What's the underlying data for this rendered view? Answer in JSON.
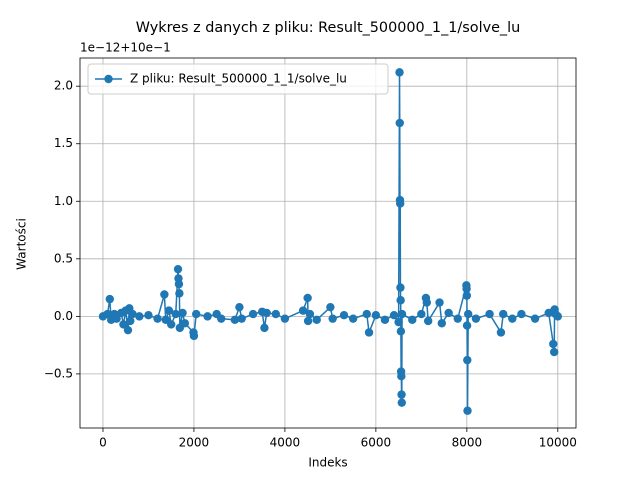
{
  "chart_data": {
    "type": "line",
    "title": "Wykres z danych z pliku: Result_500000_1_1/solve_lu",
    "offset_text": "1e−12+10e−1",
    "x_label": "Indeks",
    "y_label": "Wartości",
    "x": [
      0,
      100,
      150,
      180,
      250,
      300,
      400,
      450,
      500,
      550,
      580,
      600,
      650,
      800,
      1000,
      1200,
      1350,
      1380,
      1450,
      1500,
      1600,
      1650,
      1660,
      1670,
      1680,
      1690,
      1750,
      1800,
      1990,
      2000,
      2050,
      2300,
      2500,
      2600,
      2900,
      3000,
      3050,
      3300,
      3500,
      3550,
      3600,
      3800,
      4000,
      4400,
      4500,
      4510,
      4550,
      4700,
      5000,
      5050,
      5300,
      5500,
      5800,
      5850,
      6000,
      6200,
      6400,
      6500,
      6520,
      6525,
      6530,
      6535,
      6540,
      6545,
      6550,
      6555,
      6560,
      6565,
      6570,
      6575,
      6800,
      7000,
      7100,
      7120,
      7150,
      7400,
      7450,
      7600,
      7800,
      7990,
      7995,
      8000,
      8005,
      8010,
      8015,
      8030,
      8200,
      8500,
      8750,
      8800,
      9000,
      9200,
      9500,
      9800,
      9900,
      9920,
      9930,
      9950,
      10000
    ],
    "series": [
      {
        "name": "Z pliku: Result_500000_1_1/solve_lu",
        "color": "#1f77b4",
        "values": [
          0,
          0.02,
          0.15,
          -0.03,
          0.02,
          -0.02,
          0.03,
          -0.07,
          0.05,
          -0.12,
          0.07,
          -0.04,
          0.02,
          0,
          0.01,
          -0.02,
          0.19,
          -0.03,
          0.05,
          -0.07,
          0.02,
          0.41,
          0.33,
          0.28,
          0.2,
          -0.1,
          0.03,
          -0.06,
          -0.14,
          -0.17,
          0.02,
          0,
          0.02,
          -0.02,
          -0.03,
          0.08,
          -0.02,
          0.02,
          0.04,
          -0.1,
          0.03,
          0.02,
          -0.02,
          0.05,
          0.16,
          -0.04,
          0.02,
          -0.03,
          0.08,
          -0.02,
          0.01,
          -0.02,
          0.02,
          -0.14,
          0.01,
          -0.03,
          0.01,
          -0.05,
          2.12,
          1.68,
          1.01,
          0.98,
          0.25,
          0.14,
          -0.13,
          -0.48,
          -0.52,
          -0.68,
          -0.75,
          0.02,
          -0.03,
          0.02,
          0.16,
          0.12,
          -0.04,
          0.12,
          -0.06,
          0.03,
          -0.02,
          0.27,
          0.24,
          0.18,
          -0.08,
          -0.38,
          -0.82,
          0.02,
          -0.02,
          0.02,
          -0.14,
          0.02,
          -0.02,
          0.02,
          -0.02,
          0.03,
          -0.24,
          -0.31,
          0.06,
          0.02,
          0
        ]
      }
    ],
    "xlim": [
      -505,
      10400
    ],
    "ylim": [
      -0.97,
      2.245
    ],
    "xticks": [
      0,
      2000,
      4000,
      6000,
      8000,
      10000
    ],
    "yticks": [
      {
        "value": -0.5,
        "label": "−0.5"
      },
      {
        "value": 0,
        "label": "0.0"
      },
      {
        "value": 0.5,
        "label": "0.5"
      },
      {
        "value": 1,
        "label": "1.0"
      },
      {
        "value": 1.5,
        "label": "1.5"
      },
      {
        "value": 2,
        "label": "2.0"
      }
    ],
    "grid": true,
    "legend": "upper-left"
  }
}
